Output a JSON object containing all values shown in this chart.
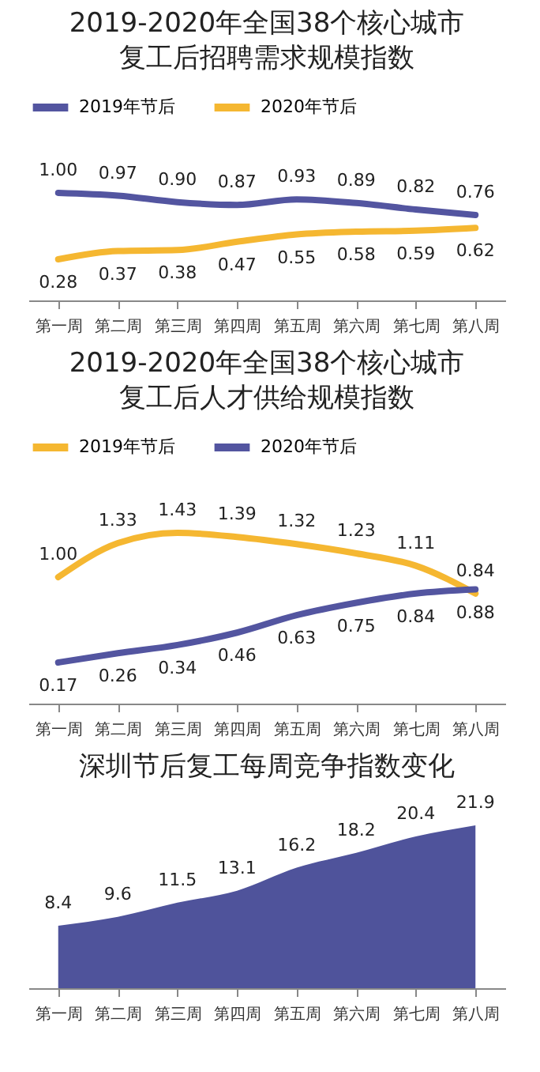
{
  "chart_data": [
    {
      "type": "line",
      "title": "2019-2020年全国38个核心城市复工后招聘需求规模指数",
      "categories": [
        "第一周",
        "第二周",
        "第三周",
        "第四周",
        "第五周",
        "第六周",
        "第七周",
        "第八周"
      ],
      "series": [
        {
          "name": "2019年节后",
          "color": "#5355a0",
          "values": [
            1.0,
            0.97,
            0.9,
            0.87,
            0.93,
            0.89,
            0.82,
            0.76
          ],
          "value_labels": [
            "1.00",
            "0.97",
            "0.90",
            "0.87",
            "0.93",
            "0.89",
            "0.82",
            "0.76"
          ]
        },
        {
          "name": "2020年节后",
          "color": "#f5b731",
          "values": [
            0.28,
            0.37,
            0.38,
            0.47,
            0.55,
            0.58,
            0.59,
            0.62
          ]
        }
      ],
      "data_labels": true,
      "legend": "top",
      "grid": false
    },
    {
      "type": "line",
      "title": "2019-2020年全国38个核心城市复工后人才供给规模指数",
      "categories": [
        "第一周",
        "第二周",
        "第三周",
        "第四周",
        "第五周",
        "第六周",
        "第七周",
        "第八周"
      ],
      "series": [
        {
          "name": "2019年节后",
          "color": "#f5b731",
          "values": [
            1.0,
            1.33,
            1.43,
            1.39,
            1.32,
            1.23,
            1.11,
            0.84
          ],
          "value_labels": [
            "1.00",
            "1.33",
            "1.43",
            "1.39",
            "1.32",
            "1.23",
            "1.11",
            "0.84"
          ]
        },
        {
          "name": "2020年节后",
          "color": "#5355a0",
          "values": [
            0.17,
            0.26,
            0.34,
            0.46,
            0.63,
            0.75,
            0.84,
            0.88
          ]
        }
      ],
      "data_labels": true,
      "legend": "top",
      "grid": false
    },
    {
      "type": "area",
      "title": "深圳节后复工每周竞争指数变化",
      "categories": [
        "第一周",
        "第二周",
        "第三周",
        "第四周",
        "第五周",
        "第六周",
        "第七周",
        "第八周"
      ],
      "series": [
        {
          "color": "#4f539b",
          "values": [
            8.4,
            9.6,
            11.5,
            13.1,
            16.2,
            18.2,
            20.4,
            21.9
          ]
        }
      ],
      "data_labels": true,
      "grid": false
    }
  ]
}
